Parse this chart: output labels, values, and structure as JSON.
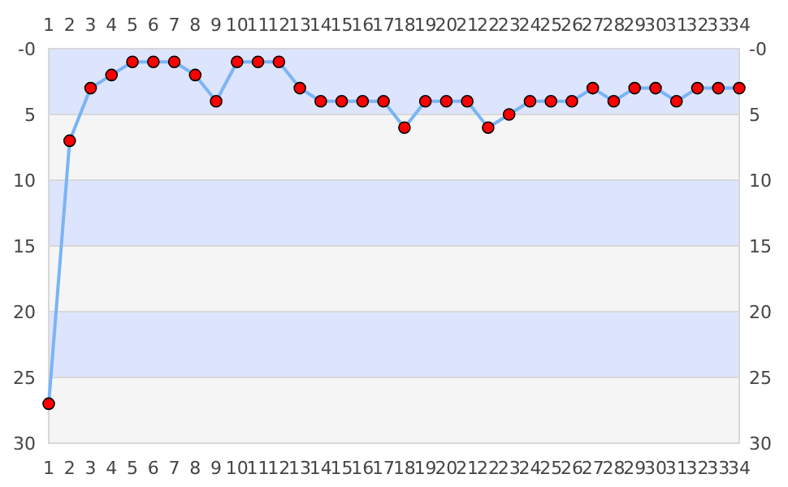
{
  "chart_data": {
    "type": "line",
    "x": [
      1,
      2,
      3,
      4,
      5,
      6,
      7,
      8,
      9,
      10,
      11,
      12,
      13,
      14,
      15,
      16,
      17,
      18,
      19,
      20,
      21,
      22,
      23,
      24,
      25,
      26,
      27,
      28,
      29,
      30,
      31,
      32,
      33,
      34
    ],
    "series": [
      {
        "color": "#ff0000",
        "values": [
          27,
          7,
          3,
          2,
          1,
          1,
          1,
          2,
          4,
          1,
          1,
          1,
          3,
          4,
          4,
          4,
          4,
          6,
          4,
          4,
          4,
          6,
          5,
          4,
          4,
          4,
          3,
          4,
          3,
          3,
          4,
          3,
          3,
          3
        ]
      }
    ],
    "xlim": [
      1,
      34
    ],
    "xticks": [
      1,
      2,
      3,
      4,
      5,
      6,
      7,
      8,
      9,
      10,
      11,
      12,
      13,
      14,
      15,
      16,
      17,
      18,
      19,
      20,
      21,
      22,
      23,
      24,
      25,
      26,
      27,
      28,
      29,
      30,
      31,
      32,
      33,
      34
    ],
    "x2lim": [
      1,
      34
    ],
    "x2ticks": [
      1,
      2,
      3,
      4,
      5,
      6,
      7,
      8,
      9,
      10,
      11,
      12,
      13,
      14,
      15,
      16,
      17,
      18,
      19,
      20,
      21,
      22,
      23,
      24,
      25,
      26,
      27,
      28,
      29,
      30,
      31,
      32,
      33,
      34
    ],
    "ylim": [
      30,
      0
    ],
    "yticks": [
      {
        "value": 0,
        "label": "-0"
      },
      5,
      10,
      15,
      20,
      25,
      30
    ],
    "y2lim": [
      30,
      0
    ],
    "y2ticks": [
      {
        "value": 0,
        "label": "-0"
      },
      5,
      10,
      15,
      20,
      25,
      30
    ],
    "bands": [
      {
        "axis": "y",
        "from": 0,
        "to": 5,
        "color": "#dde4fe"
      },
      {
        "axis": "y",
        "from": 5,
        "to": 10,
        "color": "#f5f5f5"
      },
      {
        "axis": "y",
        "from": 10,
        "to": 15,
        "color": "#dde4fe"
      },
      {
        "axis": "y",
        "from": 15,
        "to": 20,
        "color": "#f5f5f5"
      },
      {
        "axis": "y",
        "from": 20,
        "to": 25,
        "color": "#dde4fe"
      },
      {
        "axis": "y",
        "from": 25,
        "to": 30,
        "color": "#f5f5f5"
      }
    ],
    "marker": "circle",
    "grid": "y"
  }
}
